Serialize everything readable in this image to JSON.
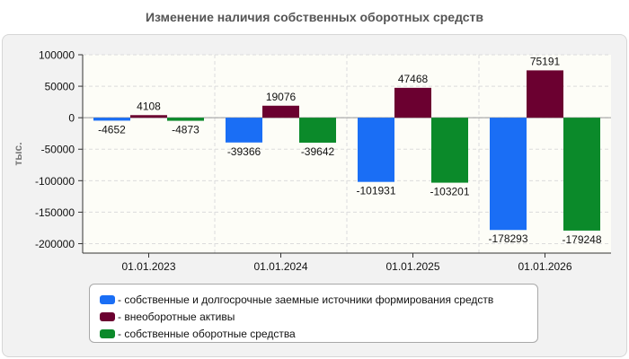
{
  "chart_data": {
    "type": "bar",
    "title": "Изменение наличия собственных оборотных средств",
    "ylabel": "тыс.",
    "categories": [
      "01.01.2023",
      "01.01.2024",
      "01.01.2025",
      "01.01.2026"
    ],
    "ylim": [
      -215000,
      100000
    ],
    "yticks": [
      100000,
      50000,
      0,
      -50000,
      -100000,
      -150000,
      -200000
    ],
    "grid": true,
    "legend_position": "bottom",
    "series": [
      {
        "name": "- собственные и долгосрочные заемные источники формирования средств",
        "color": "#1a6ef5",
        "values": [
          -4652,
          -39366,
          -101931,
          -178293
        ]
      },
      {
        "name": "- внеоборотные активы",
        "color": "#6b0030",
        "values": [
          4108,
          19076,
          47468,
          75191
        ]
      },
      {
        "name": "- собственные оборотные средства",
        "color": "#0b8a2a",
        "values": [
          -4873,
          -39642,
          -103201,
          -179248
        ]
      }
    ]
  }
}
